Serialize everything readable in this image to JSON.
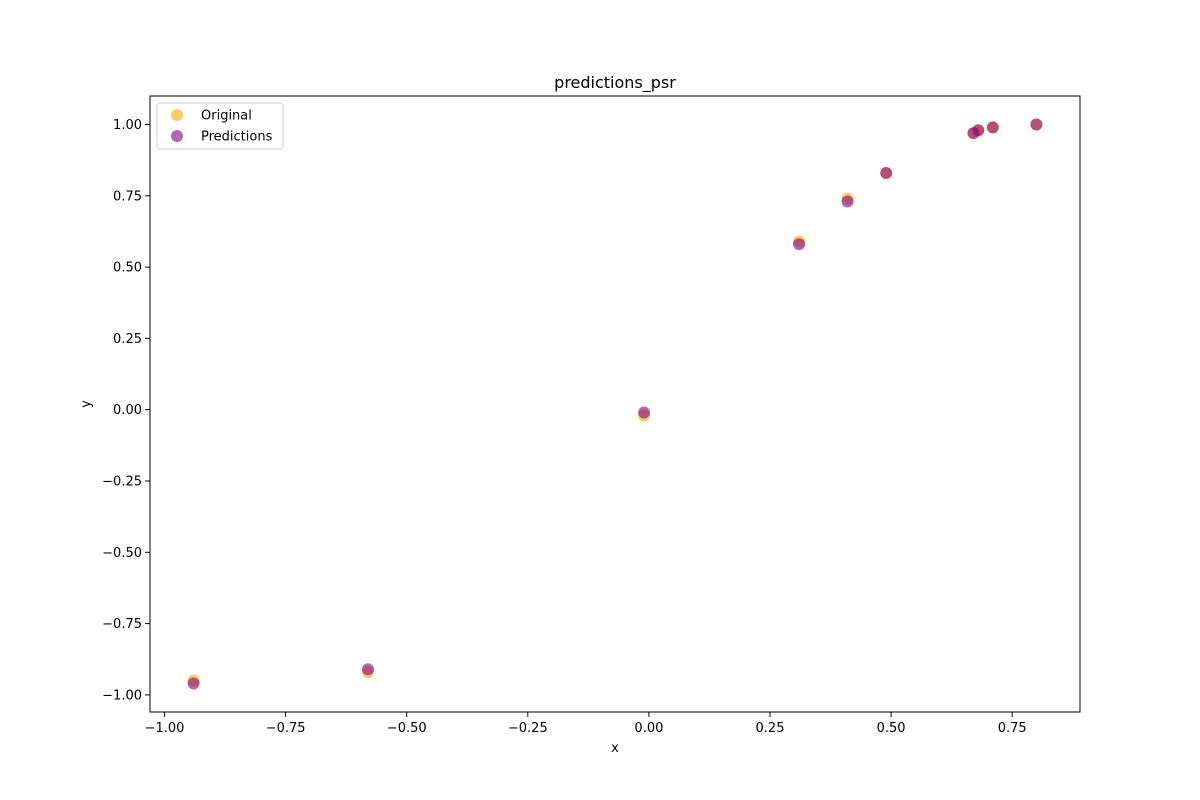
{
  "chart_data": {
    "type": "scatter",
    "title": "predictions_psr",
    "xlabel": "x",
    "ylabel": "y",
    "xlim": [
      -1.03,
      0.89
    ],
    "ylim": [
      -1.06,
      1.1
    ],
    "xticks": [
      -1.0,
      -0.75,
      -0.5,
      -0.25,
      0.0,
      0.25,
      0.5,
      0.75
    ],
    "yticks": [
      -1.0,
      -0.75,
      -0.5,
      -0.25,
      0.0,
      0.25,
      0.5,
      0.75,
      1.0
    ],
    "xtick_labels": [
      "−1.00",
      "−0.75",
      "−0.50",
      "−0.25",
      "0.00",
      "0.25",
      "0.50",
      "0.75"
    ],
    "ytick_labels": [
      "−1.00",
      "−0.75",
      "−0.50",
      "−0.25",
      "0.00",
      "0.25",
      "0.50",
      "0.75",
      "1.00"
    ],
    "grid": false,
    "legend_position": "upper-left",
    "series": [
      {
        "name": "Original",
        "color": "#FFA500",
        "opacity": 0.6,
        "x": [
          -0.94,
          -0.58,
          -0.01,
          0.31,
          0.41,
          0.49,
          0.67,
          0.68,
          0.71,
          0.8
        ],
        "y": [
          -0.95,
          -0.92,
          -0.02,
          0.59,
          0.74,
          0.83,
          0.97,
          0.98,
          0.99,
          1.0
        ]
      },
      {
        "name": "Predictions",
        "color": "#800080",
        "opacity": 0.6,
        "x": [
          -0.94,
          -0.58,
          -0.01,
          0.31,
          0.41,
          0.49,
          0.67,
          0.68,
          0.71,
          0.8
        ],
        "y": [
          -0.96,
          -0.91,
          -0.01,
          0.58,
          0.73,
          0.83,
          0.97,
          0.98,
          0.99,
          1.0
        ]
      }
    ]
  }
}
